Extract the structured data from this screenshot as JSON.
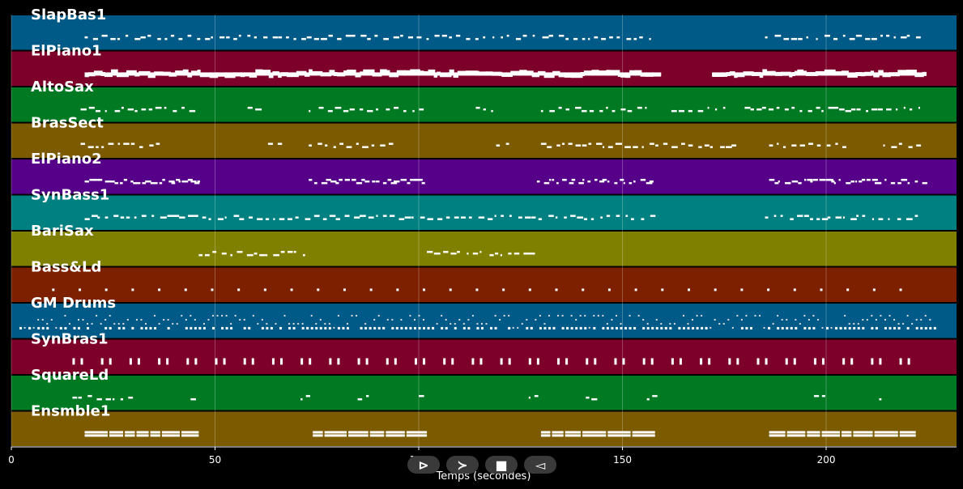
{
  "chart_data": {
    "type": "piano-roll",
    "xlabel": "Temps (secondes)",
    "xlim": [
      0,
      232
    ],
    "xticks": [
      0,
      50,
      100,
      150,
      200
    ],
    "grid": true,
    "tracks": [
      {
        "name": "SlapBas1",
        "color": "#005a87",
        "segments": [
          [
            18,
            158
          ],
          [
            185,
            224
          ]
        ],
        "pattern": "sparse"
      },
      {
        "name": "ElPiano1",
        "color": "#7c002a",
        "segments": [
          [
            18,
            158
          ],
          [
            172,
            224
          ]
        ],
        "pattern": "dense"
      },
      {
        "name": "AltoSax",
        "color": "#007a22",
        "segments": [
          [
            17,
            45
          ],
          [
            58,
            62
          ],
          [
            73,
            101
          ],
          [
            114,
            118
          ],
          [
            130,
            157
          ],
          [
            162,
            175
          ],
          [
            180,
            224
          ]
        ],
        "pattern": "sparse"
      },
      {
        "name": "BrasSect",
        "color": "#7c5a00",
        "segments": [
          [
            17,
            37
          ],
          [
            63,
            66
          ],
          [
            73,
            93
          ],
          [
            119,
            122
          ],
          [
            130,
            159
          ],
          [
            160,
            178
          ],
          [
            186,
            205
          ],
          [
            214,
            224
          ]
        ],
        "pattern": "sparse"
      },
      {
        "name": "ElPiano2",
        "color": "#56008a",
        "segments": [
          [
            18,
            46
          ],
          [
            73,
            101
          ],
          [
            129,
            158
          ],
          [
            186,
            224
          ]
        ],
        "pattern": "medium"
      },
      {
        "name": "SynBass1",
        "color": "#008080",
        "segments": [
          [
            18,
            158
          ],
          [
            185,
            222
          ]
        ],
        "pattern": "sparse"
      },
      {
        "name": "BariSax",
        "color": "#808000",
        "segments": [
          [
            46,
            73
          ],
          [
            102,
            129
          ]
        ],
        "pattern": "sparse"
      },
      {
        "name": "Bass&Ld",
        "color": "#7c2000",
        "segments": [
          [
            10,
            220
          ]
        ],
        "pattern": "dots"
      },
      {
        "name": "GM Drums",
        "color": "#005a87",
        "segments": [
          [
            2,
            227
          ]
        ],
        "pattern": "drums"
      },
      {
        "name": "SynBras1",
        "color": "#7c002a",
        "segments": [
          [
            15,
            221
          ]
        ],
        "pattern": "blocks"
      },
      {
        "name": "SquareLd",
        "color": "#007a22",
        "segments": [
          [
            15,
            31
          ],
          [
            44,
            46
          ],
          [
            71,
            74
          ],
          [
            85,
            88
          ],
          [
            100,
            102
          ],
          [
            127,
            130
          ],
          [
            141,
            144
          ],
          [
            156,
            158
          ],
          [
            197,
            200
          ],
          [
            213,
            215
          ]
        ],
        "pattern": "sparse"
      },
      {
        "name": "Ensmble1",
        "color": "#7c5a00",
        "segments": [
          [
            18,
            46
          ],
          [
            74,
            102
          ],
          [
            130,
            158
          ],
          [
            186,
            222
          ]
        ],
        "pattern": "chords"
      }
    ]
  },
  "controls": {
    "play_label": "⊳",
    "forward_label": "≻",
    "stop_label": "■",
    "back_label": "◅"
  }
}
